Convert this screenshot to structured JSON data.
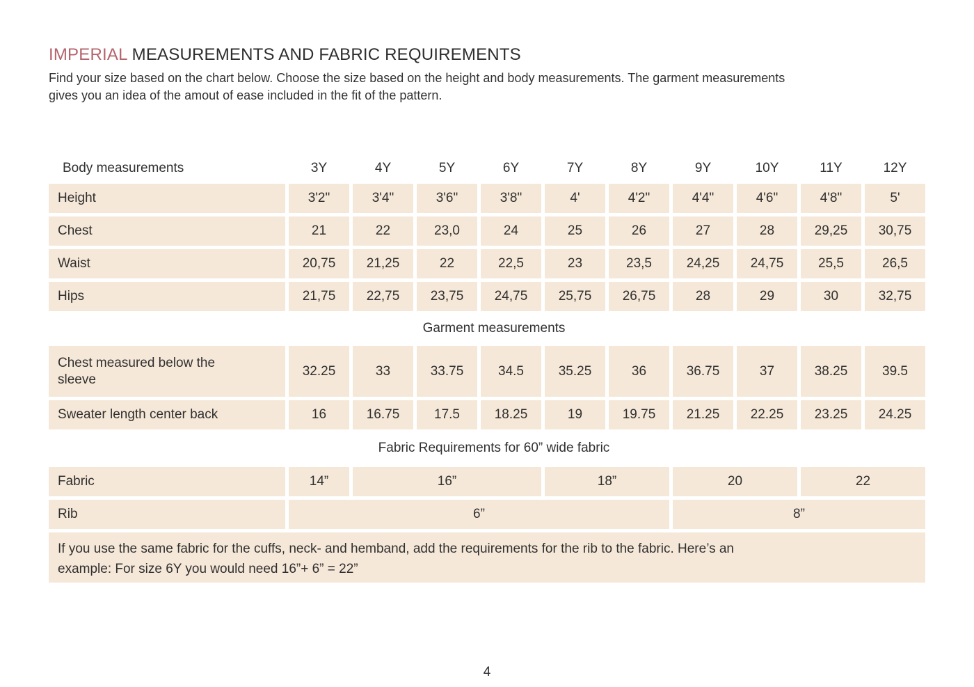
{
  "page": {
    "title_accent": "IMPERIAL",
    "title_rest": "MEASUREMENTS AND FABRIC REQUIREMENTS",
    "intro_lines": [
      "Find your size based on the chart below. Choose the size based on the height and body measurements. The garment measurements",
      "gives you an idea of the amout of ease included in the fit of the pattern."
    ],
    "page_number": "4"
  },
  "colors": {
    "accent": "#b4646c",
    "cell_background": "#f6e8d8",
    "text": "#303030"
  },
  "table": {
    "body_section_label": "Body measurements",
    "sizes": [
      "3Y",
      "4Y",
      "5Y",
      "6Y",
      "7Y",
      "8Y",
      "9Y",
      "10Y",
      "11Y",
      "12Y"
    ],
    "body_rows": [
      {
        "label": "Height",
        "values": [
          "3'2\"",
          "3'4\"",
          "3'6\"",
          "3'8\"",
          "4'",
          "4'2\"",
          "4'4\"",
          "4'6\"",
          "4'8\"",
          "5'"
        ]
      },
      {
        "label": "Chest",
        "values": [
          "21",
          "22",
          "23,0",
          "24",
          "25",
          "26",
          "27",
          "28",
          "29,25",
          "30,75"
        ]
      },
      {
        "label": "Waist",
        "values": [
          "20,75",
          "21,25",
          "22",
          "22,5",
          "23",
          "23,5",
          "24,25",
          "24,75",
          "25,5",
          "26,5"
        ]
      },
      {
        "label": "Hips",
        "values": [
          "21,75",
          "22,75",
          "23,75",
          "24,75",
          "25,75",
          "26,75",
          "28",
          "29",
          "30",
          "32,75"
        ]
      }
    ],
    "garment_section_label": "Garment measurements",
    "garment_rows": [
      {
        "label": "Chest measured below the\nsleeve",
        "values": [
          "32.25",
          "33",
          "33.75",
          "34.5",
          "35.25",
          "36",
          "36.75",
          "37",
          "38.25",
          "39.5"
        ]
      },
      {
        "label": "Sweater length center back",
        "values": [
          "16",
          "16.75",
          "17.5",
          "18.25",
          "19",
          "19.75",
          "21.25",
          "22.25",
          "23.25",
          "24.25"
        ]
      }
    ],
    "fabric_section_label": "Fabric Requirements for  60” wide fabric",
    "fabric_row": {
      "label": "Fabric",
      "cells": [
        {
          "text": "14”",
          "span": 1
        },
        {
          "text": "16”",
          "span": 3
        },
        {
          "text": "18”",
          "span": 2
        },
        {
          "text": "20",
          "span": 2
        },
        {
          "text": "22",
          "span": 2
        }
      ]
    },
    "rib_row": {
      "label": "Rib",
      "cells": [
        {
          "text": "6”",
          "span": 6
        },
        {
          "text": "8”",
          "span": 4
        }
      ]
    },
    "note_lines": [
      "If you use the same fabric for the cuffs, neck- and hemband, add the requirements for the rib to the fabric. Here’s an",
      "example: For size 6Y you would need 16”+ 6” = 22”"
    ]
  }
}
